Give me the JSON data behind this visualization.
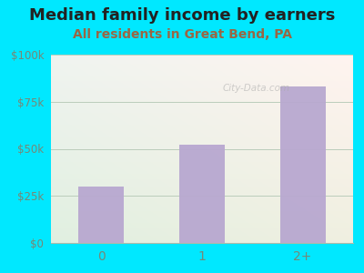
{
  "title": "Median family income by earners",
  "subtitle": "All residents in Great Bend, PA",
  "categories": [
    "0",
    "1",
    "2+"
  ],
  "values": [
    30000,
    52000,
    83000
  ],
  "bar_color": "#b8a8d0",
  "ylim": [
    0,
    100000
  ],
  "yticks": [
    0,
    25000,
    50000,
    75000,
    100000
  ],
  "ytick_labels": [
    "$0",
    "$25k",
    "$50k",
    "$75k",
    "$100k"
  ],
  "background_outer": "#00e8ff",
  "watermark": "City-Data.com",
  "title_fontsize": 13,
  "subtitle_fontsize": 10,
  "title_color": "#222222",
  "subtitle_color": "#996644",
  "tick_color": "#778877",
  "grid_color": "#bbccbb"
}
